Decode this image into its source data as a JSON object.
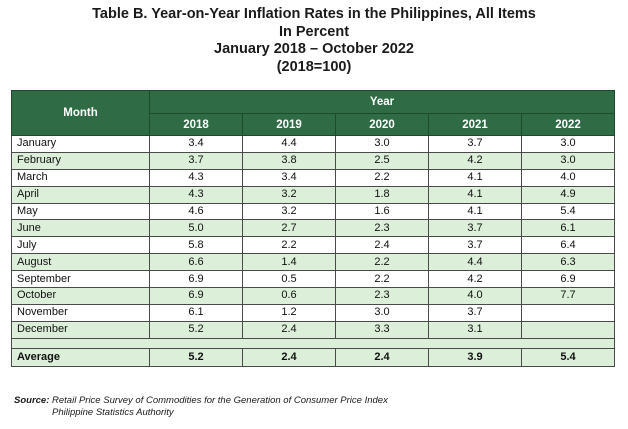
{
  "title": {
    "line1": "Table B. Year-on-Year Inflation Rates in the Philippines, All Items",
    "line2": "In Percent",
    "line3": "January 2018 – October 2022",
    "line4": "(2018=100)"
  },
  "table": {
    "month_header": "Month",
    "year_header": "Year",
    "years": [
      "2018",
      "2019",
      "2020",
      "2021",
      "2022"
    ],
    "rows": [
      {
        "month": "January",
        "values": [
          "3.4",
          "4.4",
          "3.0",
          "3.7",
          "3.0"
        ]
      },
      {
        "month": "February",
        "values": [
          "3.7",
          "3.8",
          "2.5",
          "4.2",
          "3.0"
        ]
      },
      {
        "month": "March",
        "values": [
          "4.3",
          "3.4",
          "2.2",
          "4.1",
          "4.0"
        ]
      },
      {
        "month": "April",
        "values": [
          "4.3",
          "3.2",
          "1.8",
          "4.1",
          "4.9"
        ]
      },
      {
        "month": "May",
        "values": [
          "4.6",
          "3.2",
          "1.6",
          "4.1",
          "5.4"
        ]
      },
      {
        "month": "June",
        "values": [
          "5.0",
          "2.7",
          "2.3",
          "3.7",
          "6.1"
        ]
      },
      {
        "month": "July",
        "values": [
          "5.8",
          "2.2",
          "2.4",
          "3.7",
          "6.4"
        ]
      },
      {
        "month": "August",
        "values": [
          "6.6",
          "1.4",
          "2.2",
          "4.4",
          "6.3"
        ]
      },
      {
        "month": "September",
        "values": [
          "6.9",
          "0.5",
          "2.2",
          "4.2",
          "6.9"
        ]
      },
      {
        "month": "October",
        "values": [
          "6.9",
          "0.6",
          "2.3",
          "4.0",
          "7.7"
        ]
      },
      {
        "month": "November",
        "values": [
          "6.1",
          "1.2",
          "3.0",
          "3.7",
          ""
        ]
      },
      {
        "month": "December",
        "values": [
          "5.2",
          "2.4",
          "3.3",
          "3.1",
          ""
        ]
      }
    ],
    "average": {
      "label": "Average",
      "values": [
        "5.2",
        "2.4",
        "2.4",
        "3.9",
        "5.4"
      ]
    }
  },
  "source": {
    "prefix": "Source:",
    "line1": "Retail Price Survey of Commodities for the Generation of Consumer Price Index",
    "line2": "Philippine Statistics Authority"
  },
  "colors": {
    "header_bg": "#2f6b45",
    "header_text": "#ffffff",
    "band_bg": "#dcefd9"
  }
}
